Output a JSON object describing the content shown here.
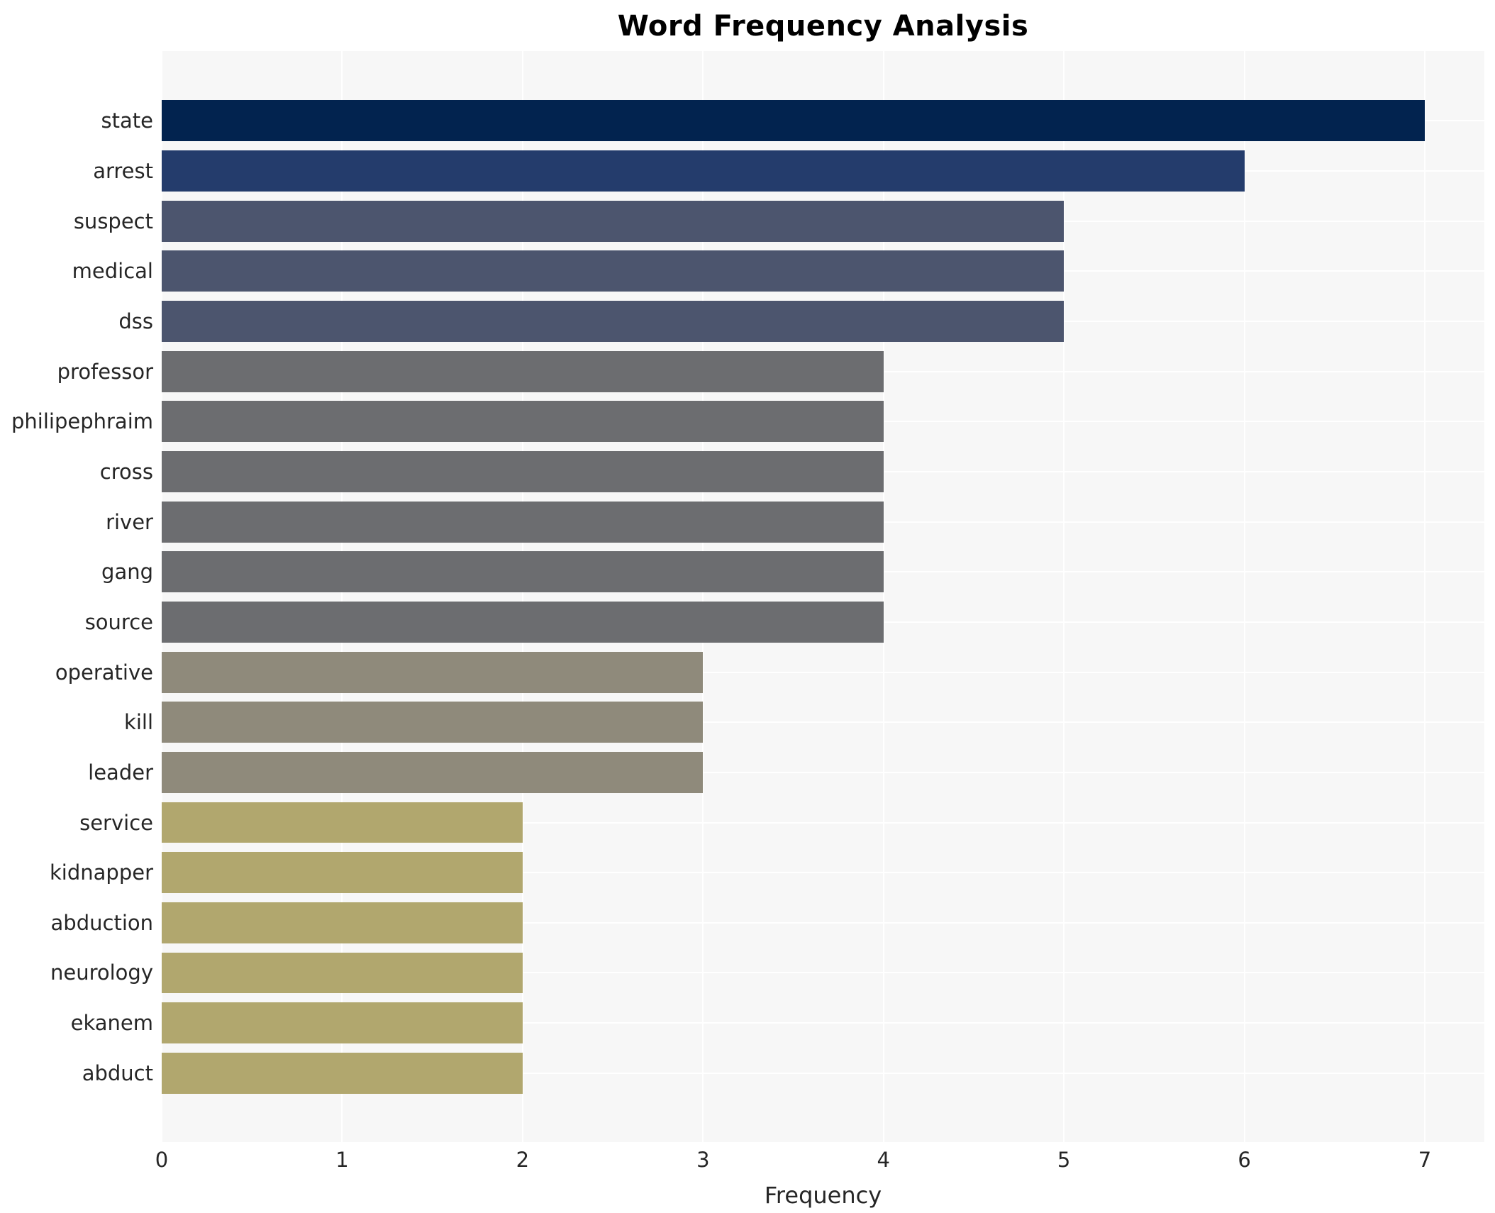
{
  "chart_data": {
    "type": "bar",
    "orientation": "horizontal",
    "title": "Word Frequency Analysis",
    "xlabel": "Frequency",
    "ylabel": "",
    "categories": [
      "state",
      "arrest",
      "suspect",
      "medical",
      "dss",
      "professor",
      "philipephraim",
      "cross",
      "river",
      "gang",
      "source",
      "operative",
      "kill",
      "leader",
      "service",
      "kidnapper",
      "abduction",
      "neurology",
      "ekanem",
      "abduct"
    ],
    "values": [
      7,
      6,
      5,
      5,
      5,
      4,
      4,
      4,
      4,
      4,
      4,
      3,
      3,
      3,
      2,
      2,
      2,
      2,
      2,
      2
    ],
    "bar_colors": [
      "#02234f",
      "#243c6c",
      "#4c556e",
      "#4c556e",
      "#4c556e",
      "#6c6d70",
      "#6c6d70",
      "#6c6d70",
      "#6c6d70",
      "#6c6d70",
      "#6c6d70",
      "#8f8a7b",
      "#8f8a7b",
      "#8f8a7b",
      "#b1a76e",
      "#b1a76e",
      "#b1a76e",
      "#b1a76e",
      "#b1a76e",
      "#b1a76e"
    ],
    "x_ticks": [
      0,
      1,
      2,
      3,
      4,
      5,
      6,
      7
    ],
    "xlim": [
      0,
      7.33
    ],
    "grid": true,
    "legend": "none",
    "plot_background": "#f7f7f7",
    "gridline_color": "#ffffff"
  }
}
